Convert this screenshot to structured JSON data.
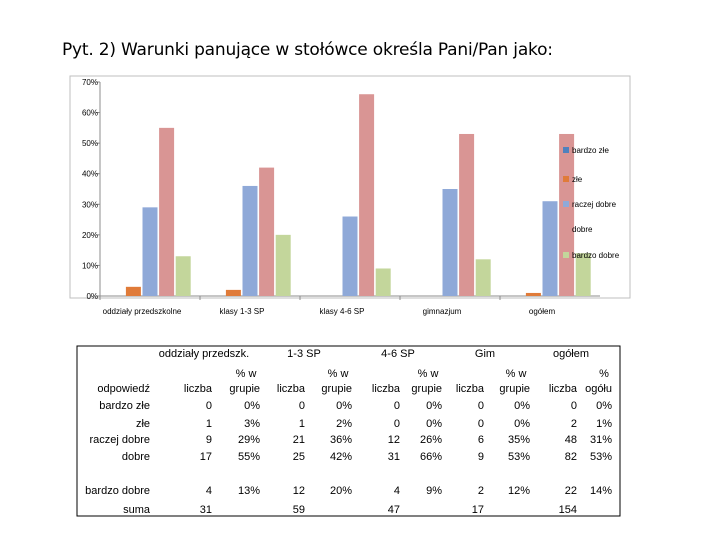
{
  "title": "Pyt. 2) Warunki panujące w stołówce określa Pani/Pan jako:",
  "chart_data": {
    "type": "bar",
    "categories": [
      "oddziały przedszkolne",
      "klasy 1-3 SP",
      "klasy 4-6 SP",
      "gimnazjum",
      "ogółem"
    ],
    "series": [
      {
        "name": "bardzo złe",
        "color": "#4f81bd",
        "values": [
          0,
          0,
          0,
          0,
          0
        ]
      },
      {
        "name": "złe",
        "color": "#e07b39",
        "values": [
          3,
          2,
          0,
          0,
          1
        ]
      },
      {
        "name": "raczej dobre",
        "color": "#8fa9d8",
        "values": [
          29,
          36,
          26,
          35,
          31
        ]
      },
      {
        "name": "dobre",
        "color": "#d99594",
        "values": [
          55,
          42,
          66,
          53,
          53
        ]
      },
      {
        "name": "bardzo dobre",
        "color": "#c3d69b",
        "values": [
          13,
          20,
          9,
          12,
          14
        ]
      }
    ],
    "yticks": [
      "0%",
      "10%",
      "20%",
      "30%",
      "40%",
      "50%",
      "60%",
      "70%"
    ],
    "ylim": [
      0,
      70
    ],
    "legend_position": "right",
    "grid": false
  },
  "table": {
    "group_headers": [
      "oddziały przedszk.",
      "1-3 SP",
      "4-6 SP",
      "Gim",
      "ogółem"
    ],
    "col_headers": [
      "odpowiedź",
      "liczba",
      "% w grupie",
      "liczba",
      "% w grupie",
      "liczba",
      "% w grupie",
      "liczba",
      "% w grupie",
      "liczba",
      "% ogółu"
    ],
    "rows": [
      [
        "bardzo złe",
        "0",
        "0%",
        "0",
        "0%",
        "0",
        "0%",
        "0",
        "0%",
        "0",
        "0%"
      ],
      [
        "złe",
        "1",
        "3%",
        "1",
        "2%",
        "0",
        "0%",
        "0",
        "0%",
        "2",
        "1%"
      ],
      [
        "raczej dobre",
        "9",
        "29%",
        "21",
        "36%",
        "12",
        "26%",
        "6",
        "35%",
        "48",
        "31%"
      ],
      [
        "dobre",
        "17",
        "55%",
        "25",
        "42%",
        "31",
        "66%",
        "9",
        "53%",
        "82",
        "53%"
      ],
      [
        "bardzo dobre",
        "4",
        "13%",
        "12",
        "20%",
        "4",
        "9%",
        "2",
        "12%",
        "22",
        "14%"
      ],
      [
        "suma",
        "31",
        "",
        "59",
        "",
        "47",
        "",
        "17",
        "",
        "154",
        ""
      ]
    ]
  }
}
